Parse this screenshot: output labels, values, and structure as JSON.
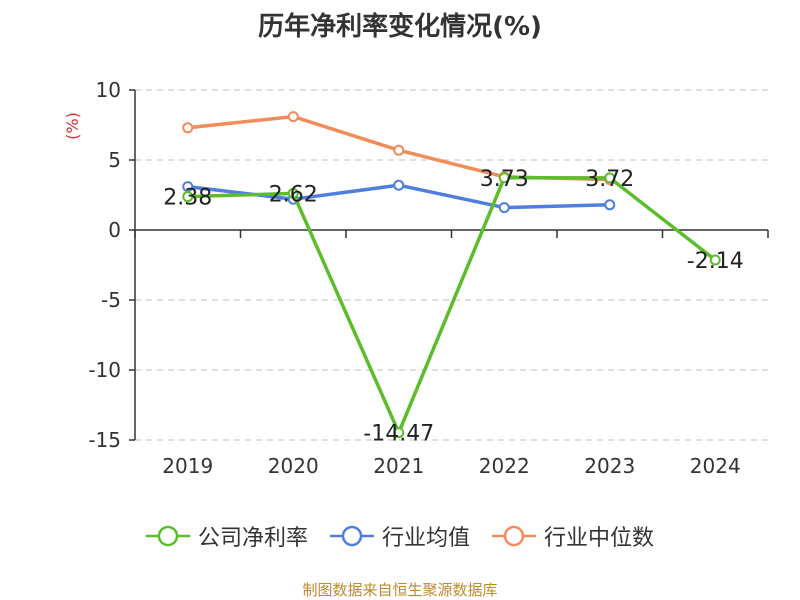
{
  "chart_data": {
    "type": "line",
    "title": "历年净利率变化情况(%)",
    "ylabel": "(%)",
    "xlabel": "",
    "categories": [
      "2019",
      "2020",
      "2021",
      "2022",
      "2023",
      "2024"
    ],
    "ylim": [
      -15,
      10
    ],
    "yticks": [
      10,
      5,
      0,
      -5,
      -10,
      -15
    ],
    "grid": true,
    "legend_position": "bottom",
    "series": [
      {
        "name": "公司净利率",
        "color": "#5cbd2a",
        "values": [
          2.38,
          2.62,
          -14.47,
          3.73,
          3.72,
          -2.14
        ],
        "labels": [
          "2.38",
          "2.62",
          "-14.47",
          "3.73",
          "3.72",
          "-2.14"
        ]
      },
      {
        "name": "行业均值",
        "color": "#4f7fde",
        "values": [
          3.1,
          2.2,
          3.2,
          1.6,
          1.8,
          null
        ]
      },
      {
        "name": "行业中位数",
        "color": "#f28c5a",
        "values": [
          7.3,
          8.1,
          5.7,
          3.8,
          3.6,
          null
        ]
      }
    ]
  },
  "source_text": "制图数据来自恒生聚源数据库"
}
